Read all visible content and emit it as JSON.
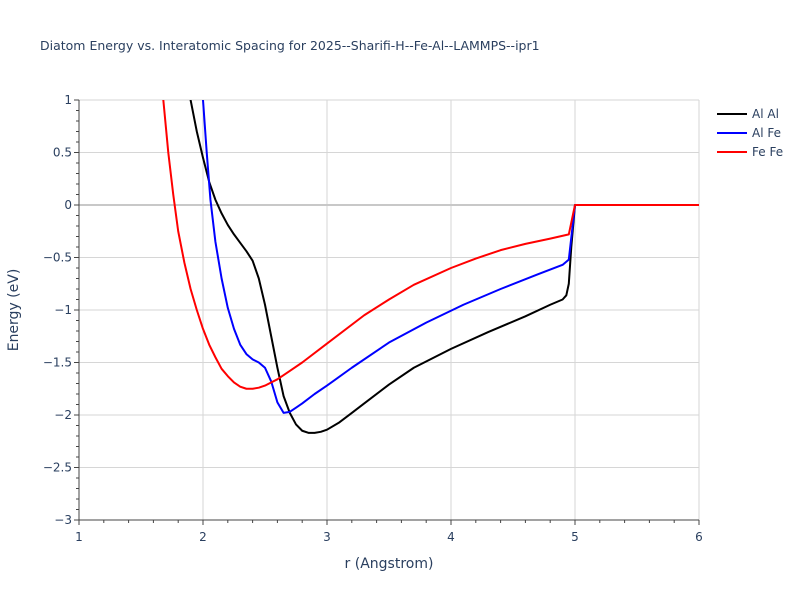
{
  "chart_data": {
    "type": "line",
    "title": "Diatom Energy vs. Interatomic Spacing for 2025--Sharifi-H--Fe-Al--LAMMPS--ipr1",
    "xlabel": "r (Angstrom)",
    "ylabel": "Energy (eV)",
    "xlim": [
      1,
      6
    ],
    "ylim": [
      -3,
      1
    ],
    "xticks": [
      1,
      2,
      3,
      4,
      5,
      6
    ],
    "xtick_labels": [
      "1",
      "2",
      "3",
      "4",
      "5",
      "6"
    ],
    "yticks": [
      1,
      0.5,
      0,
      -0.5,
      -1,
      -1.5,
      -2,
      -2.5,
      -3
    ],
    "ytick_labels": [
      "1",
      "0.5",
      "0",
      "−0.5",
      "−1",
      "−1.5",
      "−2",
      "−2.5",
      "−3"
    ],
    "grid": true,
    "legend_position": "top-right",
    "series": [
      {
        "name": "Al Al",
        "color": "#000000",
        "x": [
          1.9,
          1.95,
          2.0,
          2.05,
          2.1,
          2.15,
          2.2,
          2.25,
          2.3,
          2.35,
          2.4,
          2.45,
          2.5,
          2.55,
          2.6,
          2.65,
          2.7,
          2.75,
          2.8,
          2.85,
          2.9,
          2.95,
          3.0,
          3.1,
          3.2,
          3.3,
          3.5,
          3.7,
          4.0,
          4.3,
          4.6,
          4.8,
          4.9,
          4.93,
          4.95,
          4.97,
          5.0,
          5.5,
          6.0
        ],
        "y": [
          1.0,
          0.7,
          0.45,
          0.22,
          0.05,
          -0.08,
          -0.19,
          -0.28,
          -0.36,
          -0.44,
          -0.53,
          -0.7,
          -0.95,
          -1.25,
          -1.55,
          -1.82,
          -1.98,
          -2.09,
          -2.15,
          -2.17,
          -2.17,
          -2.16,
          -2.14,
          -2.07,
          -1.98,
          -1.89,
          -1.71,
          -1.55,
          -1.37,
          -1.21,
          -1.06,
          -0.95,
          -0.9,
          -0.86,
          -0.75,
          -0.4,
          0.0,
          0.0,
          0.0
        ]
      },
      {
        "name": "Al Fe",
        "color": "#0000ff",
        "x": [
          2.0,
          2.03,
          2.06,
          2.1,
          2.15,
          2.2,
          2.25,
          2.3,
          2.35,
          2.4,
          2.45,
          2.5,
          2.55,
          2.6,
          2.65,
          2.7,
          2.75,
          2.8,
          2.9,
          3.0,
          3.2,
          3.5,
          3.8,
          4.1,
          4.4,
          4.7,
          4.9,
          4.95,
          5.0,
          5.5,
          6.0
        ],
        "y": [
          1.0,
          0.5,
          0.05,
          -0.35,
          -0.7,
          -0.98,
          -1.18,
          -1.33,
          -1.42,
          -1.47,
          -1.5,
          -1.55,
          -1.68,
          -1.88,
          -1.98,
          -1.97,
          -1.93,
          -1.89,
          -1.8,
          -1.72,
          -1.55,
          -1.31,
          -1.12,
          -0.95,
          -0.8,
          -0.66,
          -0.57,
          -0.52,
          0.0,
          0.0,
          0.0
        ]
      },
      {
        "name": "Fe Fe",
        "color": "#ff0000",
        "x": [
          1.68,
          1.72,
          1.76,
          1.8,
          1.85,
          1.9,
          1.95,
          2.0,
          2.05,
          2.1,
          2.15,
          2.2,
          2.25,
          2.3,
          2.35,
          2.4,
          2.45,
          2.5,
          2.6,
          2.7,
          2.8,
          3.0,
          3.3,
          3.5,
          3.7,
          4.0,
          4.2,
          4.4,
          4.6,
          4.8,
          4.95,
          5.0,
          5.5,
          6.0
        ],
        "y": [
          1.0,
          0.5,
          0.1,
          -0.25,
          -0.55,
          -0.8,
          -1.0,
          -1.18,
          -1.33,
          -1.45,
          -1.56,
          -1.63,
          -1.69,
          -1.73,
          -1.75,
          -1.75,
          -1.74,
          -1.72,
          -1.66,
          -1.58,
          -1.5,
          -1.32,
          -1.05,
          -0.9,
          -0.76,
          -0.6,
          -0.51,
          -0.43,
          -0.37,
          -0.32,
          -0.28,
          0.0,
          0.0,
          0.0
        ]
      }
    ]
  }
}
